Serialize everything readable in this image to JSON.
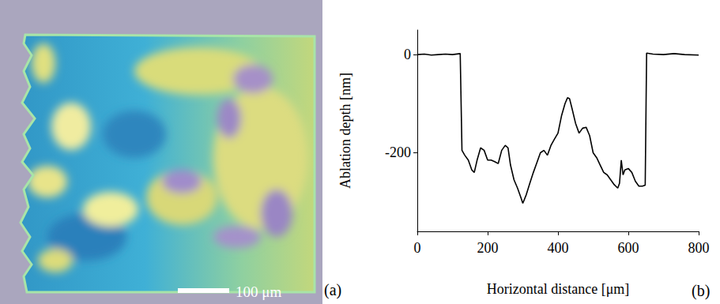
{
  "image_panel": {
    "panel_label": "(a)",
    "scale_bar": "100 μm"
  },
  "chart_data": {
    "type": "line",
    "panel_label": "(b)",
    "xlabel": "Horizontal distance [μm]",
    "ylabel": "Ablation depth [nm]",
    "x": [
      0,
      20,
      40,
      60,
      80,
      100,
      122,
      127,
      135,
      145,
      155,
      162,
      170,
      180,
      190,
      200,
      210,
      220,
      230,
      240,
      250,
      258,
      265,
      275,
      285,
      295,
      300,
      310,
      320,
      330,
      340,
      350,
      360,
      370,
      380,
      390,
      400,
      410,
      420,
      427,
      433,
      440,
      450,
      460,
      470,
      480,
      490,
      500,
      510,
      520,
      530,
      540,
      550,
      560,
      570,
      575,
      580,
      585,
      590,
      600,
      610,
      620,
      630,
      640,
      648,
      652,
      670,
      700,
      730,
      760,
      800
    ],
    "values": [
      0,
      1,
      -1,
      0,
      1,
      0,
      2,
      -195,
      -205,
      -215,
      -235,
      -240,
      -215,
      -190,
      -195,
      -215,
      -215,
      -218,
      -222,
      -195,
      -185,
      -190,
      -225,
      -255,
      -272,
      -292,
      -303,
      -285,
      -262,
      -240,
      -220,
      -200,
      -195,
      -205,
      -185,
      -172,
      -160,
      -125,
      -100,
      -88,
      -90,
      -110,
      -140,
      -160,
      -150,
      -148,
      -165,
      -200,
      -210,
      -225,
      -240,
      -245,
      -255,
      -265,
      -272,
      -262,
      -215,
      -245,
      -235,
      -232,
      -240,
      -258,
      -268,
      -268,
      -266,
      3,
      1,
      0,
      2,
      0,
      -1
    ],
    "color": "#000000",
    "xlim": [
      0,
      800
    ],
    "ylim": [
      -360,
      50
    ],
    "xticks": [
      0,
      200,
      400,
      600,
      800
    ],
    "yticks": [
      0,
      -200
    ],
    "grid": false
  }
}
